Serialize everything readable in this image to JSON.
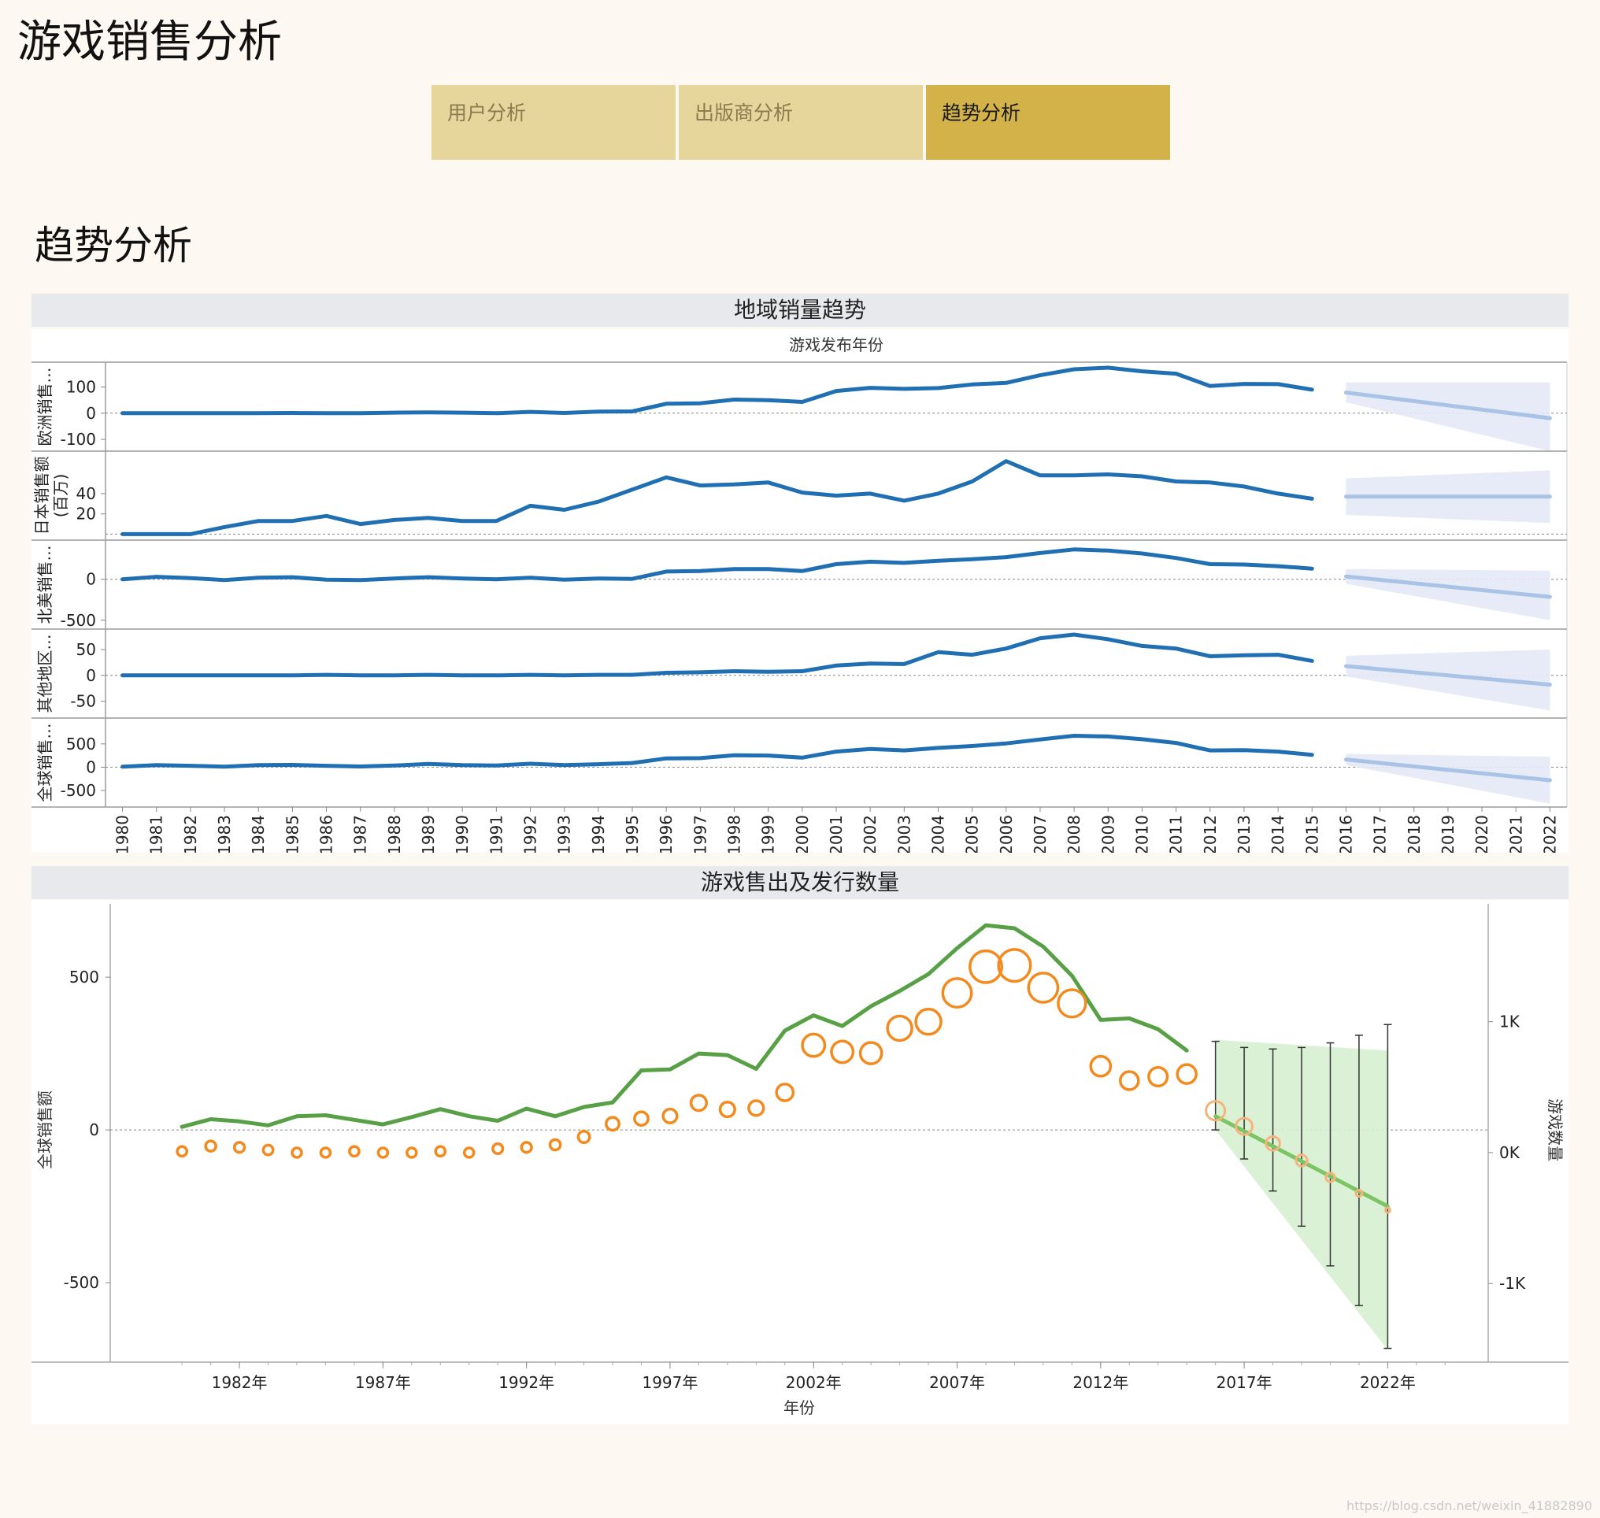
{
  "app": {
    "title": "游戏销售分析"
  },
  "tabs": [
    {
      "label": "用户分析",
      "active": false
    },
    {
      "label": "出版商分析",
      "active": false
    },
    {
      "label": "趋势分析",
      "active": true
    }
  ],
  "page": {
    "section_title": "趋势分析"
  },
  "colors": {
    "line": "#1f6fb2",
    "forecast": "#a9c3e6",
    "band": "#e3e9f6",
    "green": "#57a045",
    "orange": "#f28a1e",
    "green_band": "#d7efd1",
    "tab": "#e7d69b",
    "tab_active": "#d3b24a",
    "header": "#e8e9ec"
  },
  "watermark": "https://blog.csdn.net/weixin_41882890",
  "chart_data": [
    {
      "type": "line",
      "title": "地域销量趋势",
      "xlabel": "游戏发布年份",
      "x": [
        1980,
        1981,
        1982,
        1983,
        1984,
        1985,
        1986,
        1987,
        1988,
        1989,
        1990,
        1991,
        1992,
        1993,
        1994,
        1995,
        1996,
        1997,
        1998,
        1999,
        2000,
        2001,
        2002,
        2003,
        2004,
        2005,
        2006,
        2007,
        2008,
        2009,
        2010,
        2011,
        2012,
        2013,
        2014,
        2015
      ],
      "x_ticks": [
        "1980",
        "1981",
        "1982",
        "1983",
        "1984",
        "1985",
        "1986",
        "1987",
        "1988",
        "1989",
        "1990",
        "1991",
        "1992",
        "1993",
        "1994",
        "1995",
        "1996",
        "1997",
        "1998",
        "1999",
        "2000",
        "2001",
        "2002",
        "2003",
        "2004",
        "2005",
        "2006",
        "2007",
        "2008",
        "2009",
        "2010",
        "2011",
        "2012",
        "2013",
        "2014",
        "2015",
        "2016",
        "2017",
        "2018",
        "2019",
        "2020",
        "2021",
        "2022"
      ],
      "forecast_x": [
        2016,
        2022
      ],
      "series": [
        {
          "name": "欧洲销售…",
          "ylim": [
            -130,
            180
          ],
          "yticks": [
            {
              "v": 100,
              "label": "100"
            },
            {
              "v": 0,
              "label": "0"
            },
            {
              "v": -100,
              "label": "-100"
            }
          ],
          "values": [
            0,
            0,
            0,
            0,
            0,
            1,
            0,
            0,
            2,
            3,
            2,
            0,
            5,
            1,
            6,
            7,
            36,
            38,
            52,
            50,
            43,
            85,
            97,
            93,
            96,
            110,
            116,
            145,
            168,
            174,
            160,
            151,
            104,
            112,
            111,
            90
          ],
          "forecast_line": [
            79,
            -19
          ],
          "forecast_band_upper": [
            118,
            118
          ],
          "forecast_band_lower": [
            42,
            -145
          ]
        },
        {
          "name": "日本销售额",
          "name2": "(百万)",
          "ylim": [
            -2,
            78
          ],
          "yticks": [
            {
              "v": 40,
              "label": "40"
            },
            {
              "v": 20,
              "label": "20"
            }
          ],
          "values": [
            0,
            0,
            0,
            7,
            13,
            13,
            18,
            10,
            14,
            16,
            13,
            13,
            28,
            24,
            32,
            44,
            56,
            48,
            49,
            51,
            41,
            38,
            40,
            33,
            40,
            52,
            72,
            58,
            58,
            59,
            57,
            52,
            51,
            47,
            40,
            35
          ],
          "forecast_line": [
            37,
            37
          ],
          "forecast_band_upper": [
            55,
            63
          ],
          "forecast_band_lower": [
            19,
            11
          ]
        },
        {
          "name": "北美销售…",
          "ylim": [
            -560,
            430
          ],
          "yticks": [
            {
              "v": 0,
              "label": "0"
            },
            {
              "v": -500,
              "label": "-500"
            }
          ],
          "values": [
            0,
            30,
            15,
            -10,
            20,
            25,
            -5,
            -10,
            10,
            25,
            10,
            0,
            20,
            -5,
            10,
            5,
            95,
            100,
            125,
            125,
            100,
            185,
            215,
            200,
            225,
            245,
            270,
            320,
            365,
            350,
            315,
            260,
            185,
            180,
            160,
            130
          ],
          "forecast_line": [
            35,
            -215
          ],
          "forecast_band_upper": [
            125,
            105
          ],
          "forecast_band_lower": [
            -55,
            -500
          ]
        },
        {
          "name": "其他地区…",
          "ylim": [
            -75,
            82
          ],
          "yticks": [
            {
              "v": 50,
              "label": "50"
            },
            {
              "v": 0,
              "label": "0"
            },
            {
              "v": -50,
              "label": "-50"
            }
          ],
          "values": [
            0,
            0,
            0,
            0,
            0,
            0,
            1,
            0,
            0,
            1,
            0,
            0,
            1,
            0,
            1,
            1,
            5,
            6,
            8,
            7,
            8,
            19,
            23,
            22,
            45,
            40,
            52,
            72,
            79,
            70,
            57,
            52,
            37,
            39,
            40,
            28
          ],
          "forecast_line": [
            18,
            -18
          ],
          "forecast_band_upper": [
            38,
            50
          ],
          "forecast_band_lower": [
            -2,
            -68
          ]
        },
        {
          "name": "全球销售…",
          "ylim": [
            -770,
            970
          ],
          "yticks": [
            {
              "v": 500,
              "label": "500"
            },
            {
              "v": 0,
              "label": "0"
            },
            {
              "v": -500,
              "label": "-500"
            }
          ],
          "values": [
            10,
            45,
            30,
            10,
            45,
            50,
            30,
            15,
            35,
            70,
            45,
            35,
            75,
            45,
            65,
            90,
            190,
            195,
            255,
            250,
            205,
            335,
            390,
            360,
            415,
            455,
            510,
            595,
            675,
            660,
            600,
            520,
            360,
            365,
            335,
            265
          ],
          "forecast_line": [
            165,
            -280
          ],
          "forecast_band_upper": [
            285,
            225
          ],
          "forecast_band_lower": [
            45,
            -780
          ]
        }
      ]
    },
    {
      "type": "line",
      "title": "游戏售出及发行数量",
      "xlabel": "年份",
      "ylabel": "全球销售额",
      "ylabel_right": "游戏数量",
      "ylim": [
        -760,
        740
      ],
      "y2lim": [
        -1.6,
        1.9
      ],
      "yticks": [
        {
          "v": 500,
          "label": "500"
        },
        {
          "v": 0,
          "label": "0"
        },
        {
          "v": -500,
          "label": "-500"
        }
      ],
      "y2ticks": [
        {
          "v": 1,
          "label": "1K"
        },
        {
          "v": 0,
          "label": "0K"
        },
        {
          "v": -1,
          "label": "-1K"
        }
      ],
      "xlim": [
        1977.5,
        2025.5
      ],
      "x_ticks": [
        {
          "v": 1982,
          "label": "1982年"
        },
        {
          "v": 1987,
          "label": "1987年"
        },
        {
          "v": 1992,
          "label": "1992年"
        },
        {
          "v": 1997,
          "label": "1997年"
        },
        {
          "v": 2002,
          "label": "2002年"
        },
        {
          "v": 2007,
          "label": "2007年"
        },
        {
          "v": 2012,
          "label": "2012年"
        },
        {
          "v": 2017,
          "label": "2017年"
        },
        {
          "v": 2022,
          "label": "2022年"
        }
      ],
      "years": [
        1980,
        1981,
        1982,
        1983,
        1984,
        1985,
        1986,
        1987,
        1988,
        1989,
        1990,
        1991,
        1992,
        1993,
        1994,
        1995,
        1996,
        1997,
        1998,
        1999,
        2000,
        2001,
        2002,
        2003,
        2004,
        2005,
        2006,
        2007,
        2008,
        2009,
        2010,
        2011,
        2012,
        2013,
        2014,
        2015
      ],
      "sales": [
        10,
        35,
        28,
        15,
        45,
        48,
        33,
        18,
        42,
        68,
        45,
        30,
        70,
        45,
        75,
        90,
        195,
        198,
        250,
        245,
        200,
        325,
        375,
        340,
        405,
        455,
        510,
        595,
        670,
        660,
        600,
        505,
        360,
        365,
        330,
        260
      ],
      "game_counts": [
        0.01,
        0.05,
        0.04,
        0.02,
        0.0,
        0.0,
        0.01,
        0.0,
        0.0,
        0.01,
        0.0,
        0.03,
        0.04,
        0.06,
        0.12,
        0.22,
        0.26,
        0.28,
        0.38,
        0.33,
        0.34,
        0.46,
        0.82,
        0.77,
        0.76,
        0.95,
        1.0,
        1.22,
        1.42,
        1.43,
        1.26,
        1.14,
        0.66,
        0.55,
        0.58,
        0.6
      ],
      "forecast": {
        "years": [
          2016,
          2017,
          2018,
          2019,
          2020,
          2021,
          2022
        ],
        "line": [
          45,
          -250
        ],
        "band_upper": [
          295,
          260
        ],
        "band_lower": [
          0,
          -720
        ],
        "game_counts": [
          0.32,
          0.2,
          0.07,
          -0.06,
          -0.19,
          -0.31,
          -0.44
        ],
        "error_high": [
          290,
          270,
          265,
          270,
          285,
          310,
          345
        ],
        "error_low": [
          0,
          -95,
          -200,
          -315,
          -445,
          -575,
          -715
        ]
      }
    }
  ]
}
